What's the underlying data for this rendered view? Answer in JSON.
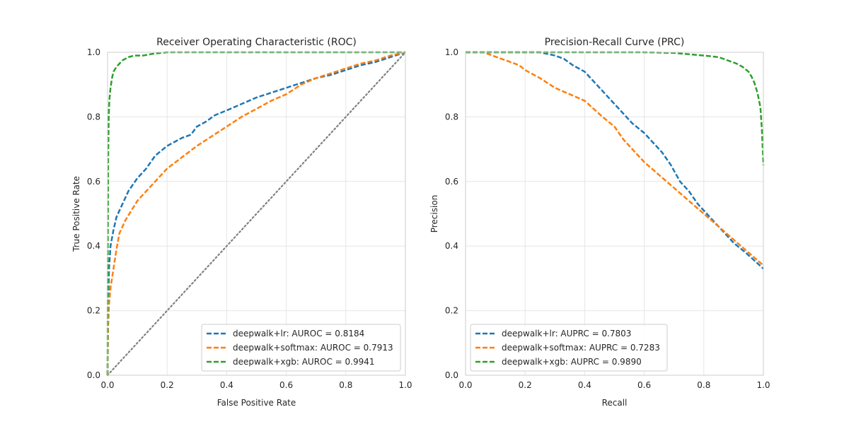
{
  "chart_data": [
    {
      "type": "line",
      "title": "Receiver Operating Characteristic (ROC)",
      "xlabel": "False Positive Rate",
      "ylabel": "True Positive Rate",
      "xlim": [
        0.0,
        1.0
      ],
      "ylim": [
        0.0,
        1.0
      ],
      "xticks": [
        "0.0",
        "0.2",
        "0.4",
        "0.6",
        "0.8",
        "1.0"
      ],
      "yticks": [
        "0.0",
        "0.2",
        "0.4",
        "0.6",
        "0.8",
        "1.0"
      ],
      "grid": true,
      "legend_position": "lower-right",
      "reference_line": {
        "x": [
          0,
          1
        ],
        "y": [
          0,
          1
        ],
        "color": "#808080",
        "style": "dotted"
      },
      "series": [
        {
          "name": "deepwalk+lr: AUROC = 0.8184",
          "color": "#1f77b4",
          "x": [
            0,
            0.002,
            0.005,
            0.01,
            0.02,
            0.03,
            0.05,
            0.07,
            0.1,
            0.13,
            0.16,
            0.2,
            0.25,
            0.28,
            0.3,
            0.33,
            0.36,
            0.4,
            0.45,
            0.5,
            0.55,
            0.6,
            0.65,
            0.7,
            0.75,
            0.8,
            0.85,
            0.9,
            0.95,
            1.0
          ],
          "y": [
            0,
            0.2,
            0.33,
            0.4,
            0.45,
            0.49,
            0.53,
            0.57,
            0.61,
            0.64,
            0.68,
            0.71,
            0.735,
            0.745,
            0.77,
            0.785,
            0.805,
            0.82,
            0.84,
            0.86,
            0.875,
            0.89,
            0.905,
            0.92,
            0.93,
            0.945,
            0.96,
            0.97,
            0.985,
            1.0
          ]
        },
        {
          "name": "deepwalk+softmax: AUROC = 0.7913",
          "color": "#ff7f0e",
          "x": [
            0,
            0.002,
            0.005,
            0.01,
            0.02,
            0.03,
            0.04,
            0.06,
            0.08,
            0.1,
            0.13,
            0.16,
            0.2,
            0.25,
            0.3,
            0.35,
            0.4,
            0.45,
            0.5,
            0.55,
            0.6,
            0.65,
            0.7,
            0.75,
            0.8,
            0.85,
            0.9,
            0.95,
            1.0
          ],
          "y": [
            0,
            0.15,
            0.22,
            0.27,
            0.33,
            0.39,
            0.44,
            0.48,
            0.51,
            0.54,
            0.57,
            0.6,
            0.64,
            0.675,
            0.71,
            0.74,
            0.77,
            0.8,
            0.825,
            0.85,
            0.87,
            0.9,
            0.92,
            0.935,
            0.95,
            0.965,
            0.975,
            0.99,
            1.0
          ]
        },
        {
          "name": "deepwalk+xgb: AUROC = 0.9941",
          "color": "#2ca02c",
          "x": [
            0,
            0.001,
            0.002,
            0.004,
            0.006,
            0.01,
            0.015,
            0.02,
            0.03,
            0.04,
            0.05,
            0.07,
            0.09,
            0.12,
            0.15,
            0.2,
            0.3,
            0.5,
            0.7,
            1.0
          ],
          "y": [
            0,
            0.35,
            0.66,
            0.8,
            0.85,
            0.89,
            0.92,
            0.94,
            0.955,
            0.965,
            0.975,
            0.985,
            0.99,
            0.99,
            0.995,
            1.0,
            1.0,
            1.0,
            1.0,
            1.0
          ]
        }
      ]
    },
    {
      "type": "line",
      "title": "Precision-Recall Curve (PRC)",
      "xlabel": "Recall",
      "ylabel": "Precision",
      "xlim": [
        0.0,
        1.0
      ],
      "ylim": [
        0.0,
        1.0
      ],
      "xticks": [
        "0.0",
        "0.2",
        "0.4",
        "0.6",
        "0.8",
        "1.0"
      ],
      "yticks": [
        "0.0",
        "0.2",
        "0.4",
        "0.6",
        "0.8",
        "1.0"
      ],
      "grid": true,
      "legend_position": "lower-left",
      "series": [
        {
          "name": "deepwalk+lr: AUPRC = 0.7803",
          "color": "#1f77b4",
          "x": [
            0,
            0.05,
            0.1,
            0.15,
            0.2,
            0.25,
            0.3,
            0.33,
            0.36,
            0.4,
            0.43,
            0.46,
            0.5,
            0.53,
            0.56,
            0.6,
            0.63,
            0.66,
            0.69,
            0.72,
            0.75,
            0.78,
            0.82,
            0.86,
            0.9,
            0.94,
            0.97,
            1.0
          ],
          "y": [
            1.0,
            1.0,
            1.0,
            1.0,
            1.0,
            1.0,
            0.99,
            0.98,
            0.96,
            0.94,
            0.91,
            0.88,
            0.84,
            0.81,
            0.78,
            0.75,
            0.72,
            0.69,
            0.65,
            0.6,
            0.57,
            0.53,
            0.49,
            0.45,
            0.41,
            0.38,
            0.355,
            0.33
          ]
        },
        {
          "name": "deepwalk+softmax: AUPRC = 0.7283",
          "color": "#ff7f0e",
          "x": [
            0,
            0.03,
            0.06,
            0.09,
            0.12,
            0.15,
            0.18,
            0.2,
            0.25,
            0.3,
            0.35,
            0.4,
            0.43,
            0.46,
            0.5,
            0.53,
            0.56,
            0.6,
            0.65,
            0.7,
            0.75,
            0.8,
            0.85,
            0.9,
            0.95,
            1.0
          ],
          "y": [
            1.0,
            1.0,
            1.0,
            0.99,
            0.98,
            0.97,
            0.96,
            0.945,
            0.92,
            0.89,
            0.87,
            0.85,
            0.825,
            0.8,
            0.77,
            0.73,
            0.7,
            0.66,
            0.62,
            0.58,
            0.54,
            0.5,
            0.46,
            0.42,
            0.38,
            0.34
          ]
        },
        {
          "name": "deepwalk+xgb: AUPRC = 0.9890",
          "color": "#2ca02c",
          "x": [
            0,
            0.1,
            0.2,
            0.3,
            0.4,
            0.5,
            0.6,
            0.7,
            0.8,
            0.85,
            0.88,
            0.91,
            0.93,
            0.95,
            0.96,
            0.97,
            0.98,
            0.99,
            0.995,
            1.0
          ],
          "y": [
            1.0,
            1.0,
            1.0,
            1.0,
            1.0,
            1.0,
            1.0,
            0.998,
            0.99,
            0.985,
            0.975,
            0.965,
            0.955,
            0.94,
            0.925,
            0.905,
            0.875,
            0.83,
            0.76,
            0.65
          ]
        }
      ]
    }
  ]
}
